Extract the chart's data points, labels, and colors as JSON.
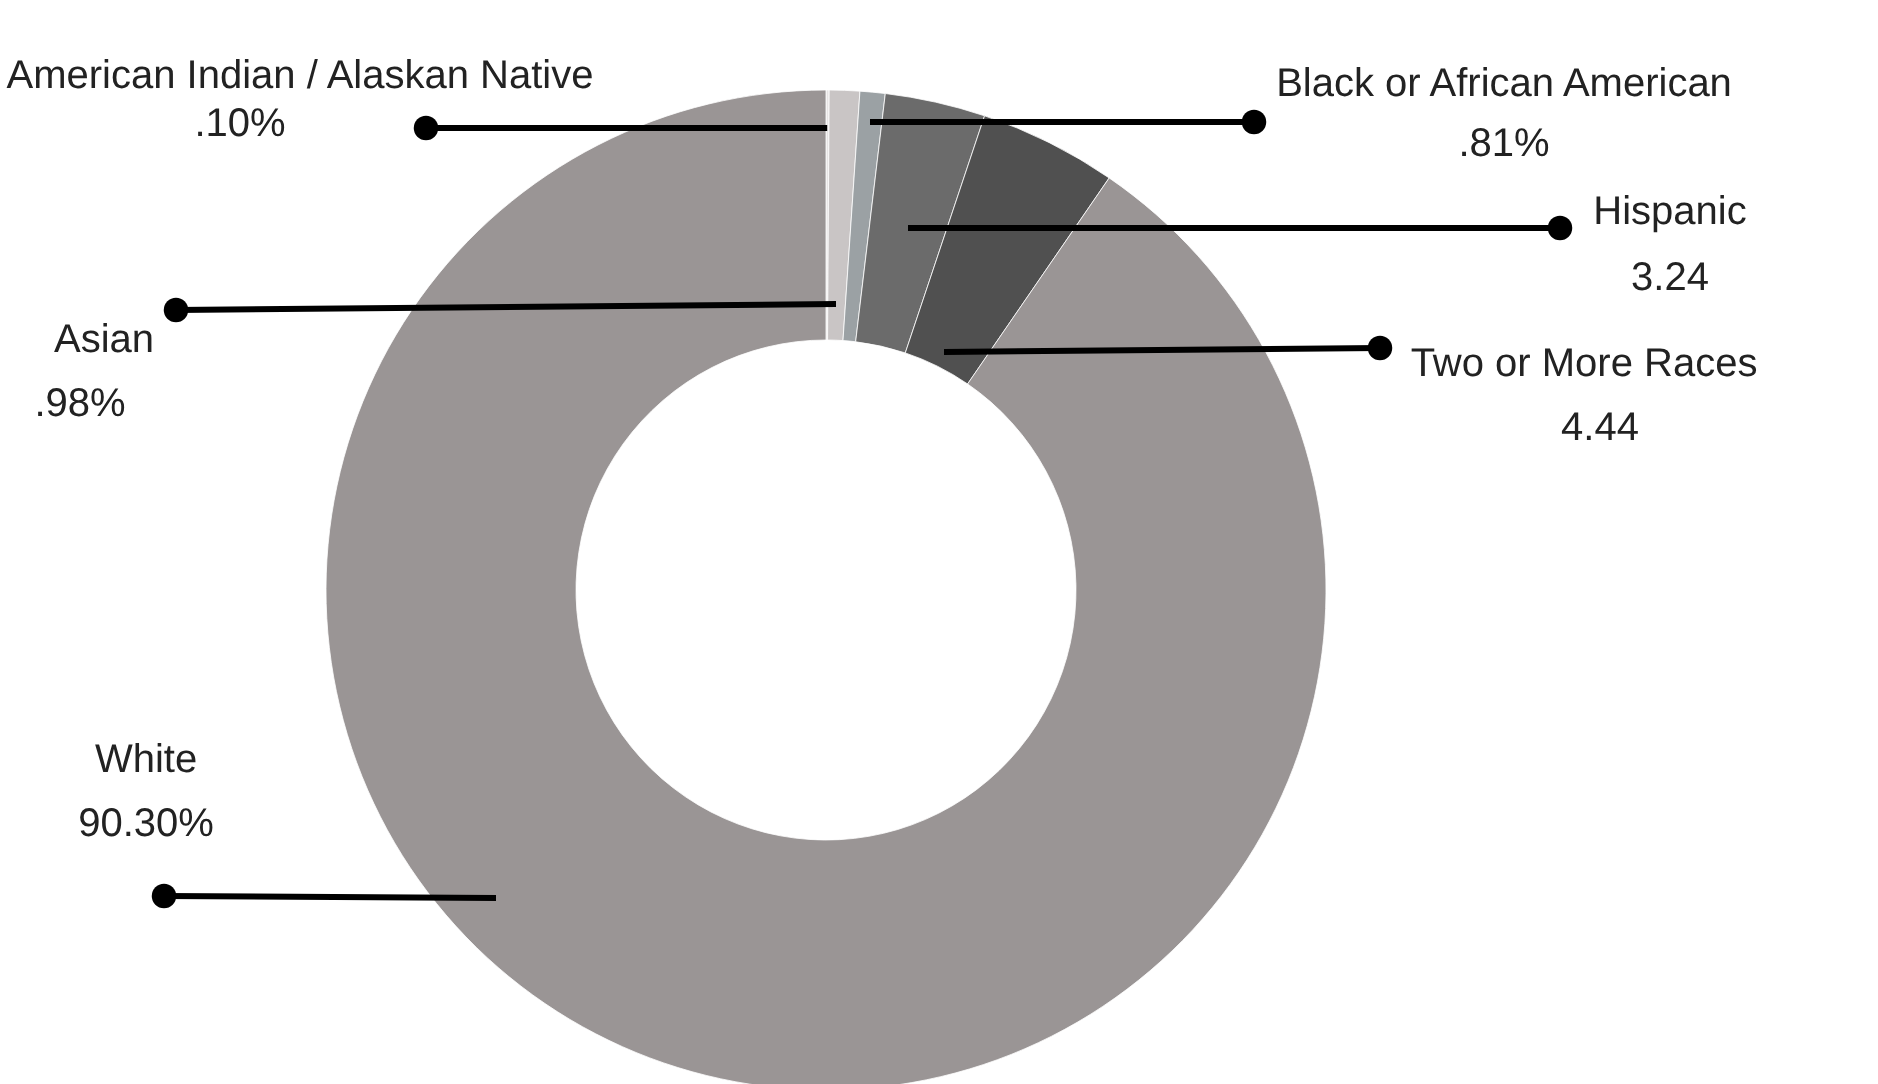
{
  "chart_data": {
    "type": "donut",
    "categories": [
      "American Indian / Alaskan Native",
      "Asian",
      "Black or African American",
      "Hispanic",
      "Two or More Races",
      "White"
    ],
    "values": [
      0.1,
      0.98,
      0.81,
      3.24,
      4.44,
      90.3
    ],
    "value_labels": [
      ".10%",
      ".98%",
      ".81%",
      "3.24",
      "4.44",
      "90.30%"
    ],
    "colors": [
      "#e6e3e3",
      "#c9c5c5",
      "#9ba1a4",
      "#6b6b6b",
      "#505050",
      "#9a9595"
    ]
  }
}
